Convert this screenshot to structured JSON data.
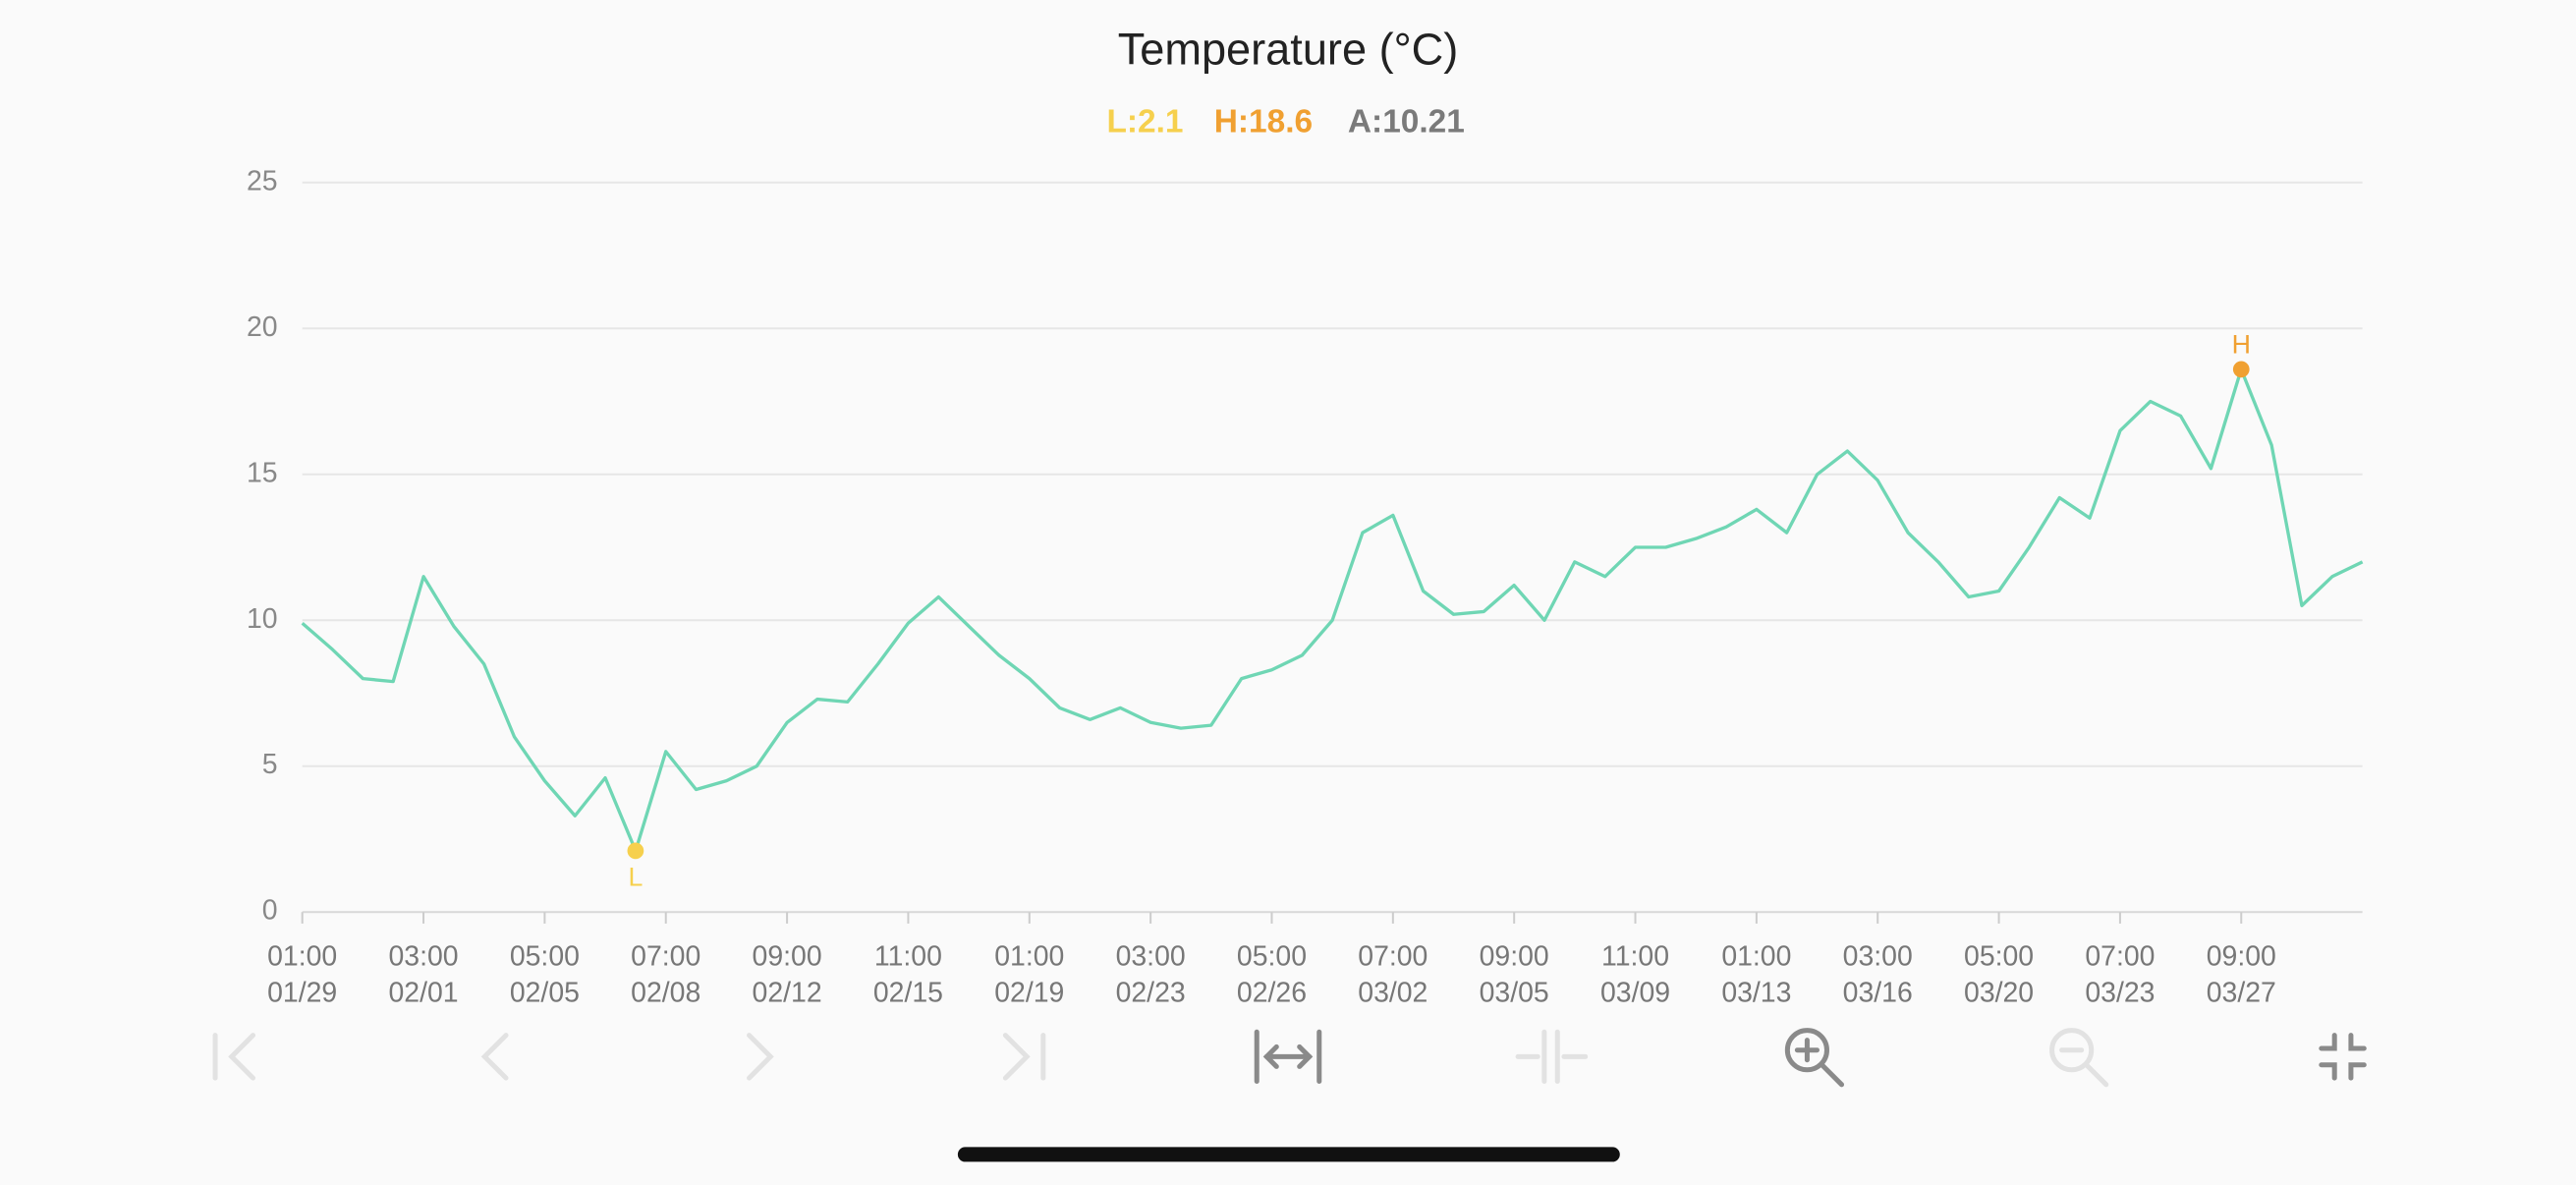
{
  "chart_data": {
    "type": "line",
    "title": "Temperature (°C)",
    "low": {
      "value": 2.1,
      "label": "L:2.1",
      "marker": "L",
      "color": "#f6d04d"
    },
    "high": {
      "value": 18.6,
      "label": "H:18.6",
      "marker": "H",
      "color": "#f0a031"
    },
    "average": {
      "value": 10.21,
      "label": "A:10.21",
      "color": "#7a7a7a"
    },
    "xticks": [
      {
        "time": "01:00",
        "date": "01/29"
      },
      {
        "time": "03:00",
        "date": "02/01"
      },
      {
        "time": "05:00",
        "date": "02/05"
      },
      {
        "time": "07:00",
        "date": "02/08"
      },
      {
        "time": "09:00",
        "date": "02/12"
      },
      {
        "time": "11:00",
        "date": "02/15"
      },
      {
        "time": "01:00",
        "date": "02/19"
      },
      {
        "time": "03:00",
        "date": "02/23"
      },
      {
        "time": "05:00",
        "date": "02/26"
      },
      {
        "time": "07:00",
        "date": "03/02"
      },
      {
        "time": "09:00",
        "date": "03/05"
      },
      {
        "time": "11:00",
        "date": "03/09"
      },
      {
        "time": "01:00",
        "date": "03/13"
      },
      {
        "time": "03:00",
        "date": "03/16"
      },
      {
        "time": "05:00",
        "date": "03/20"
      },
      {
        "time": "07:00",
        "date": "03/23"
      },
      {
        "time": "09:00",
        "date": "03/27"
      }
    ],
    "ylim": [
      0,
      25
    ],
    "yticks": [
      0,
      5,
      10,
      15,
      20,
      25
    ],
    "grid": true,
    "series": [
      {
        "color": "#6fd6b4",
        "values": [
          9.9,
          9.0,
          8.0,
          7.9,
          11.5,
          9.8,
          8.5,
          6.0,
          4.5,
          3.3,
          4.6,
          2.1,
          5.5,
          4.2,
          4.5,
          5.0,
          6.5,
          7.3,
          7.2,
          8.5,
          9.9,
          10.8,
          9.8,
          8.8,
          8.0,
          7.0,
          6.6,
          7.0,
          6.5,
          6.3,
          6.4,
          8.0,
          8.3,
          8.8,
          10.0,
          13.0,
          13.6,
          11.0,
          10.2,
          10.3,
          11.2,
          10.0,
          12.0,
          11.5,
          12.5,
          12.5,
          12.8,
          13.2,
          13.8,
          13.0,
          15.0,
          15.8,
          14.8,
          13.0,
          12.0,
          10.8,
          11.0,
          12.5,
          14.2,
          13.5,
          16.5,
          17.5,
          17.0,
          15.2,
          18.6,
          16.0,
          10.5,
          11.5,
          12.0
        ]
      }
    ]
  }
}
